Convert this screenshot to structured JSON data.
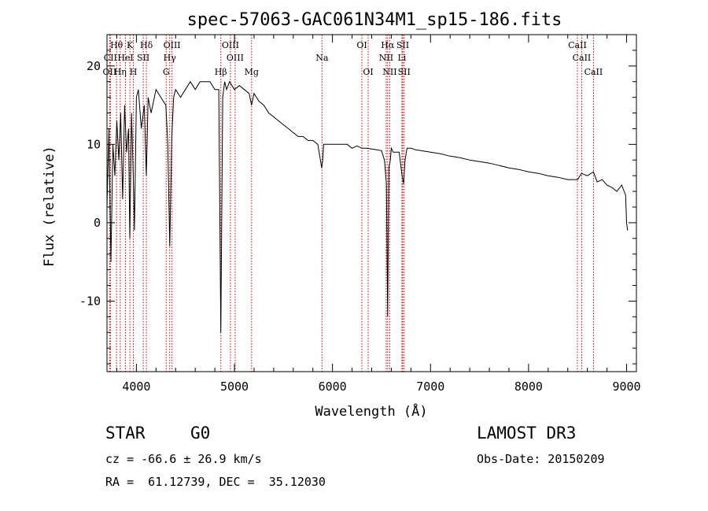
{
  "chart_data": {
    "type": "line",
    "title": "spec-57063-GAC061N34M1_sp15-186.fits",
    "xlabel": "Wavelength (Å)",
    "ylabel": "Flux (relative)",
    "xlim": [
      3700,
      9100
    ],
    "ylim": [
      -19,
      24
    ],
    "xticks": [
      4000,
      5000,
      6000,
      7000,
      8000,
      9000
    ],
    "yticks": [
      -10,
      0,
      10,
      20
    ],
    "x_minor_step": 200,
    "y_minor_step": 2,
    "spectrum": {
      "name": "flux",
      "x": [
        3700,
        3720,
        3740,
        3760,
        3780,
        3800,
        3820,
        3840,
        3860,
        3880,
        3900,
        3920,
        3933,
        3950,
        3968,
        3980,
        4000,
        4020,
        4050,
        4080,
        4101,
        4120,
        4150,
        4200,
        4250,
        4300,
        4320,
        4340,
        4361,
        4380,
        4400,
        4450,
        4500,
        4550,
        4600,
        4650,
        4700,
        4750,
        4800,
        4840,
        4861,
        4880,
        4900,
        4920,
        4950,
        5000,
        5050,
        5100,
        5150,
        5175,
        5200,
        5250,
        5300,
        5350,
        5400,
        5450,
        5500,
        5550,
        5600,
        5650,
        5700,
        5750,
        5800,
        5850,
        5890,
        5900,
        5910,
        5950,
        6000,
        6050,
        6100,
        6150,
        6200,
        6250,
        6300,
        6350,
        6400,
        6450,
        6500,
        6530,
        6550,
        6563,
        6575,
        6590,
        6600,
        6620,
        6650,
        6680,
        6700,
        6710,
        6725,
        6740,
        6760,
        6800,
        6850,
        6900,
        6950,
        7000,
        7100,
        7200,
        7300,
        7400,
        7500,
        7600,
        7700,
        7800,
        7900,
        8000,
        8100,
        8200,
        8300,
        8400,
        8500,
        8540,
        8600,
        8662,
        8700,
        8750,
        8800,
        8850,
        8900,
        8950,
        8990,
        9000,
        9010
      ],
      "y": [
        2,
        12,
        -5,
        10,
        6,
        13,
        8,
        14,
        3,
        15,
        9,
        12,
        -2,
        14,
        6,
        -1,
        16,
        17,
        12,
        15,
        6,
        16,
        14,
        17,
        16,
        15,
        10,
        -3,
        11,
        16,
        17,
        16,
        17,
        18,
        17,
        18,
        18,
        18,
        17,
        17,
        -14,
        16,
        18,
        17,
        18,
        17,
        17.5,
        17,
        16.5,
        15,
        16.5,
        15.5,
        15,
        14,
        13.5,
        13,
        12.5,
        12,
        11.5,
        11,
        11,
        10.5,
        10.5,
        10,
        7,
        8,
        10,
        10,
        10,
        10,
        10,
        10,
        9.5,
        9.8,
        9.5,
        9.5,
        9.4,
        9.3,
        9.2,
        8,
        5,
        -12,
        7,
        8,
        9.5,
        9,
        9,
        9,
        7,
        6,
        5,
        8,
        9.5,
        9.5,
        9.3,
        9.2,
        9.1,
        9,
        8.8,
        8.5,
        8.3,
        8,
        7.8,
        7.6,
        7.3,
        7,
        6.8,
        6.5,
        6.3,
        6,
        5.8,
        5.5,
        5.5,
        6.3,
        6,
        6.5,
        5.2,
        5.5,
        4.8,
        4.5,
        4,
        4.8,
        3.5,
        0,
        -1
      ]
    },
    "lines": [
      {
        "label": "Hθ",
        "x": 3798,
        "row": 1
      },
      {
        "label": "CII",
        "x": 3735,
        "row": 2
      },
      {
        "label": "OII",
        "x": 3727,
        "row": 3
      },
      {
        "label": "Hη",
        "x": 3835,
        "row": 3
      },
      {
        "label": "K",
        "x": 3934,
        "row": 1
      },
      {
        "label": "HeI",
        "x": 3889,
        "row": 2
      },
      {
        "label": "H",
        "x": 3969,
        "row": 3
      },
      {
        "label": "Hδ",
        "x": 4102,
        "row": 1
      },
      {
        "label": "SII",
        "x": 4070,
        "row": 2
      },
      {
        "label": "OIII",
        "x": 4363,
        "row": 1
      },
      {
        "label": "Hγ",
        "x": 4340,
        "row": 2
      },
      {
        "label": "G",
        "x": 4304,
        "row": 3
      },
      {
        "label": "Hβ",
        "x": 4861,
        "row": 3
      },
      {
        "label": "OIII",
        "x": 4959,
        "row": 1
      },
      {
        "label": "OIII",
        "x": 5007,
        "row": 2
      },
      {
        "label": "Mg",
        "x": 5175,
        "row": 3
      },
      {
        "label": "Na",
        "x": 5893,
        "row": 2
      },
      {
        "label": "OI",
        "x": 6300,
        "row": 1
      },
      {
        "label": "OI",
        "x": 6364,
        "row": 3
      },
      {
        "label": "Hα",
        "x": 6563,
        "row": 1
      },
      {
        "label": "NII",
        "x": 6548,
        "row": 2
      },
      {
        "label": "NII",
        "x": 6584,
        "row": 3
      },
      {
        "label": "SII",
        "x": 6717,
        "row": 1
      },
      {
        "label": "Li",
        "x": 6708,
        "row": 2
      },
      {
        "label": "SII",
        "x": 6731,
        "row": 3
      },
      {
        "label": "CaII",
        "x": 8498,
        "row": 1
      },
      {
        "label": "CaII",
        "x": 8542,
        "row": 2
      },
      {
        "label": "CaII",
        "x": 8662,
        "row": 3
      }
    ]
  },
  "footer": {
    "class_label": "STAR",
    "subclass": "G0",
    "survey": "LAMOST DR3",
    "cz": "cz = -66.6 ± 26.9 km/s",
    "obs_date": "Obs-Date: 20150209",
    "coords": "RA =  61.12739, DEC =  35.12030"
  },
  "colors": {
    "axis": "#000000",
    "spectrum": "#000000",
    "line_marker": "#cc0000"
  }
}
